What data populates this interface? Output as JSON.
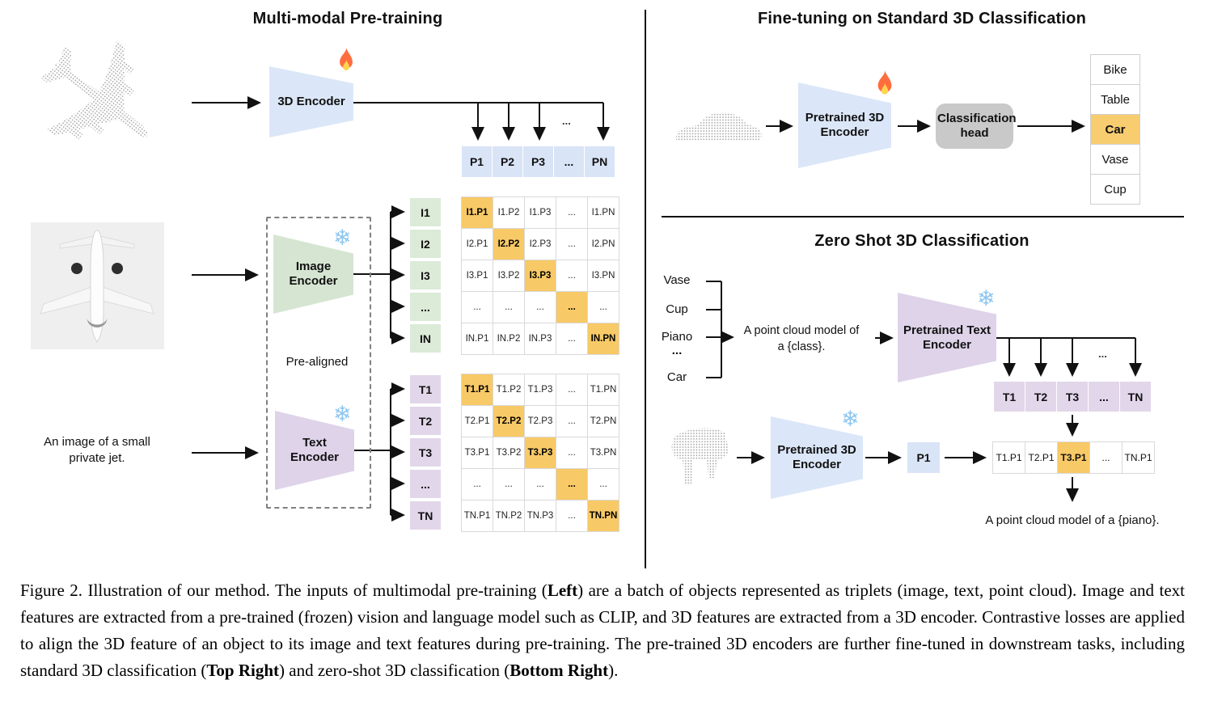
{
  "left_panel": {
    "title": "Multi-modal Pre-training",
    "encoder_3d_label": "3D Encoder",
    "image_encoder_label": "Image Encoder",
    "text_encoder_label": "Text Encoder",
    "pre_aligned_label": "Pre-aligned",
    "text_input": "An image of a small private jet.",
    "p_dots": "...",
    "p_row": [
      "P1",
      "P2",
      "P3",
      "...",
      "PN"
    ],
    "image_rows": [
      "I1",
      "I2",
      "I3",
      "...",
      "IN"
    ],
    "text_rows": [
      "T1",
      "T2",
      "T3",
      "...",
      "TN"
    ],
    "image_matrix": [
      [
        "I1.P1",
        "I1.P2",
        "I1.P3",
        "...",
        "I1.PN"
      ],
      [
        "I2.P1",
        "I2.P2",
        "I2.P3",
        "...",
        "I2.PN"
      ],
      [
        "I3.P1",
        "I3.P2",
        "I3.P3",
        "...",
        "I3.PN"
      ],
      [
        "...",
        "...",
        "...",
        "...",
        "..."
      ],
      [
        "IN.P1",
        "IN.P2",
        "IN.P3",
        "...",
        "IN.PN"
      ]
    ],
    "text_matrix": [
      [
        "T1.P1",
        "T1.P2",
        "T1.P3",
        "...",
        "T1.PN"
      ],
      [
        "T2.P1",
        "T2.P2",
        "T2.P3",
        "...",
        "T2.PN"
      ],
      [
        "T3.P1",
        "T3.P2",
        "T3.P3",
        "...",
        "T3.PN"
      ],
      [
        "...",
        "...",
        "...",
        "...",
        "..."
      ],
      [
        "TN.P1",
        "TN.P2",
        "TN.P3",
        "...",
        "TN.PN"
      ]
    ]
  },
  "top_right_panel": {
    "title": "Fine-tuning on Standard 3D Classification",
    "encoder_label": "Pretrained 3D Encoder",
    "classification_head_label": "Classification head",
    "classes": [
      "Bike",
      "Table",
      "Car",
      "Vase",
      "Cup"
    ],
    "predicted_class": "Car"
  },
  "bottom_right_panel": {
    "title": "Zero Shot 3D Classification",
    "class_prompts": [
      "Vase",
      "Cup",
      "Piano",
      "...",
      "Car"
    ],
    "prompt_line1": "A point cloud model of",
    "prompt_line2": "a {class}.",
    "text_encoder_label": "Pretrained Text Encoder",
    "encoder_3d_label": "Pretrained 3D Encoder",
    "p_cell": "P1",
    "t_dots": "...",
    "t_row": [
      "T1",
      "T2",
      "T3",
      "...",
      "TN"
    ],
    "result_row": [
      "T1.P1",
      "T2.P1",
      "T3.P1",
      "...",
      "TN.P1"
    ],
    "highlighted_result": "T3.P1",
    "output_text": "A point cloud model of a {piano}."
  },
  "caption": {
    "segments": [
      {
        "text": "Figure 2. Illustration of our method. The inputs of multimodal pre-training (",
        "bold": false
      },
      {
        "text": "Left",
        "bold": true
      },
      {
        "text": ") are a batch of objects represented as triplets (image, text, point cloud).  Image and text features are extracted from a pre-trained (frozen) vision and language model such as CLIP, and 3D features are extracted from a 3D encoder.  Contrastive losses are applied to align the 3D feature of an object to its image and text features during pre-training. The pre-trained 3D encoders are further fine-tuned in downstream tasks, including standard 3D classification (",
        "bold": false
      },
      {
        "text": "Top Right",
        "bold": true
      },
      {
        "text": ") and zero-shot 3D classification (",
        "bold": false
      },
      {
        "text": "Bottom Right",
        "bold": true
      },
      {
        "text": ").",
        "bold": false
      }
    ]
  },
  "colors": {
    "encoder_blue": "#dbe7f8",
    "encoder_green": "#d6e5d2",
    "encoder_purple": "#ded3e9",
    "cell_blue": "#d9e4f7",
    "cell_green": "#dcead8",
    "cell_purple": "#e2d6ea",
    "highlight_orange": "#f8c967",
    "gray_box": "#c9c9c9",
    "point_cloud_gray": "#9a9a9a"
  }
}
